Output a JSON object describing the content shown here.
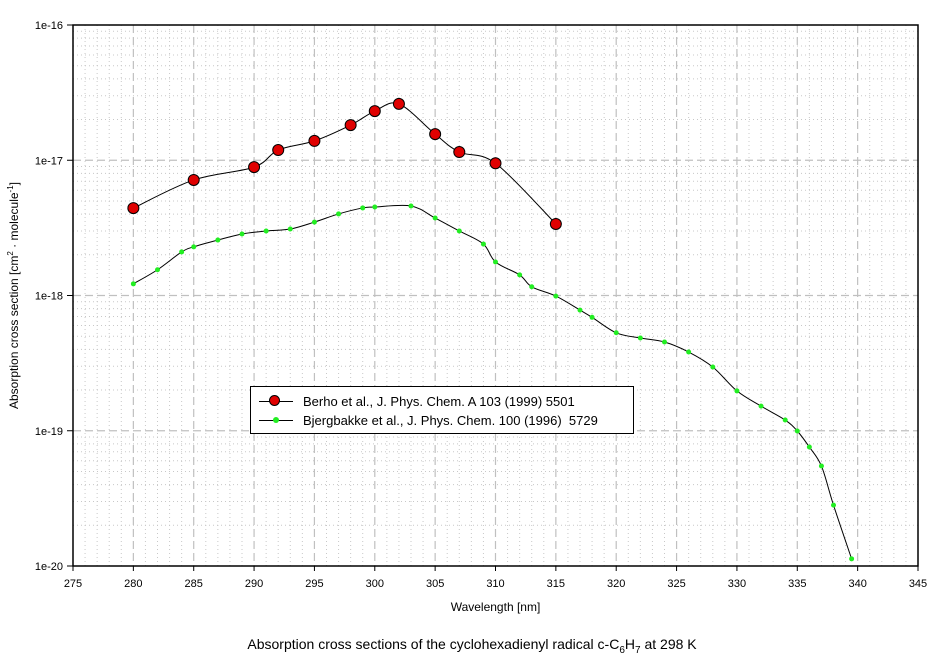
{
  "chart_data": {
    "type": "line",
    "title_prefix": "Absorption cross sections of the cyclohexadienyl radical c-C",
    "title_sub1": "6",
    "title_mid": "H",
    "title_sub2": "7",
    "title_suffix": " at 298 K",
    "xlabel": "Wavelength [nm]",
    "ylabel_main": "Absorption cross section [cm",
    "ylabel_sup1": "2",
    "ylabel_mid": " · molecule",
    "ylabel_sup2": "-1",
    "ylabel_end": "]",
    "xlim": [
      275,
      345
    ],
    "ylim": [
      1e-20,
      1e-16
    ],
    "yscale": "log",
    "grid": true,
    "x_ticks": [
      "275",
      "280",
      "285",
      "290",
      "295",
      "300",
      "305",
      "310",
      "315",
      "320",
      "325",
      "330",
      "335",
      "340",
      "345"
    ],
    "y_ticks": [
      "1e-16",
      "1e-17",
      "1e-18",
      "1e-19",
      "1e-20"
    ],
    "legend_position": "lower-center",
    "series": [
      {
        "name": "Berho et al., J. Phys. Chem. A 103 (1999) 5501",
        "color": "#e00000",
        "marker": "circle-large",
        "x": [
          280,
          285,
          290,
          292,
          295,
          298,
          300,
          302,
          305,
          307,
          310,
          315
        ],
        "y": [
          4.43e-18,
          7.15e-18,
          8.9e-18,
          1.19e-17,
          1.39e-17,
          1.82e-17,
          2.31e-17,
          2.61e-17,
          1.56e-17,
          1.15e-17,
          9.5e-18,
          3.38e-18
        ]
      },
      {
        "name": "Bjergbakke et al., J. Phys. Chem. 100 (1996)  5729",
        "color": "#22ee22",
        "marker": "circle-small",
        "x": [
          280,
          282,
          284,
          285,
          287,
          289,
          291,
          293,
          295,
          297,
          299,
          300,
          303,
          305,
          307,
          309,
          310,
          312,
          313,
          315,
          317,
          318,
          320,
          322,
          324,
          326,
          328,
          330,
          332,
          334,
          335,
          336,
          337,
          338,
          339.5
        ],
        "y": [
          1.22e-18,
          1.55e-18,
          2.1e-18,
          2.29e-18,
          2.57e-18,
          2.85e-18,
          3e-18,
          3.1e-18,
          3.49e-18,
          4.01e-18,
          4.44e-18,
          4.51e-18,
          4.59e-18,
          3.74e-18,
          3e-18,
          2.4e-18,
          1.77e-18,
          1.42e-18,
          1.16e-18,
          9.9e-19,
          7.8e-19,
          6.9e-19,
          5.3e-19,
          4.85e-19,
          4.53e-19,
          3.82e-19,
          2.96e-19,
          1.97e-19,
          1.52e-19,
          1.2e-19,
          9.96e-20,
          7.58e-20,
          5.49e-20,
          2.82e-20,
          1.13e-20
        ]
      }
    ]
  }
}
